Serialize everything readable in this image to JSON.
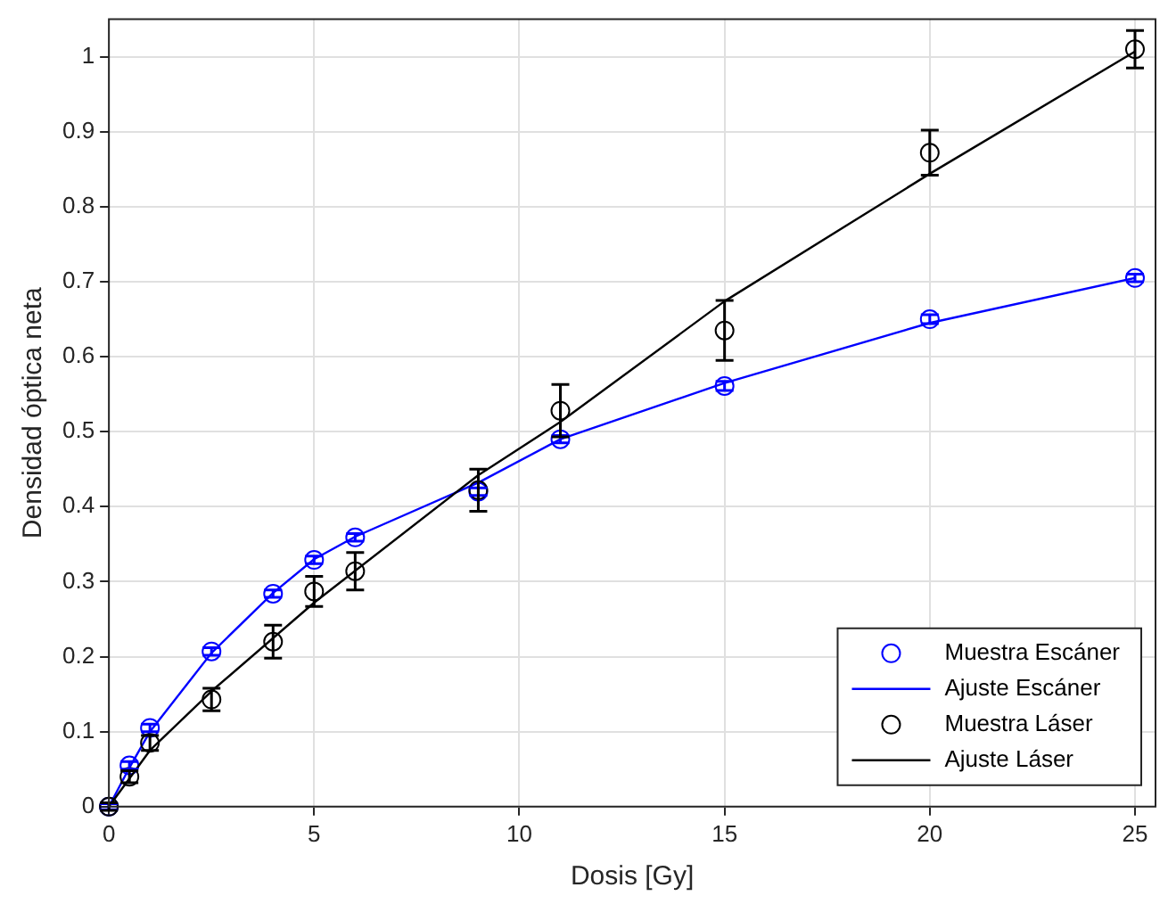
{
  "chart_data": {
    "type": "scatter",
    "xlabel": "Dosis [Gy]",
    "ylabel": "Densidad óptica neta",
    "xlim": [
      0,
      25.5
    ],
    "xticks": [
      0,
      5,
      10,
      15,
      20,
      25
    ],
    "ylim": [
      0,
      1.05
    ],
    "yticks": [
      0,
      0.1,
      0.2,
      0.3,
      0.4,
      0.5,
      0.6,
      0.7,
      0.8,
      0.9,
      1
    ],
    "grid": true,
    "legend": "bottom right",
    "marker": "circle",
    "series": [
      {
        "name": "Muestra Escáner",
        "type": "scatter",
        "color": "#0000ff",
        "x": [
          0,
          0.5,
          1,
          2.5,
          4,
          5,
          6,
          9,
          11,
          15,
          20,
          25
        ],
        "values": [
          0,
          0.055,
          0.105,
          0.207,
          0.284,
          0.329,
          0.359,
          0.42,
          0.49,
          0.561,
          0.65,
          0.705
        ],
        "errors": [
          0.004,
          0.005,
          0.005,
          0.005,
          0.005,
          0.005,
          0.005,
          0.005,
          0.005,
          0.006,
          0.006,
          0.005
        ]
      },
      {
        "name": "Ajuste Escáner",
        "type": "line",
        "marker": "none",
        "color": "#0000ff",
        "x": [
          0,
          0.5,
          1,
          2.5,
          4,
          5,
          6,
          9,
          11,
          15,
          20,
          25
        ],
        "values": [
          0,
          0.052,
          0.1,
          0.205,
          0.285,
          0.33,
          0.36,
          0.432,
          0.49,
          0.565,
          0.645,
          0.705
        ]
      },
      {
        "name": "Muestra Láser",
        "type": "scatter",
        "color": "#000000",
        "x": [
          0,
          0.5,
          1,
          2.5,
          4,
          5,
          6,
          9,
          11,
          15,
          20,
          25
        ],
        "values": [
          0,
          0.04,
          0.085,
          0.143,
          0.22,
          0.287,
          0.314,
          0.422,
          0.528,
          0.635,
          0.872,
          1.01
        ],
        "errors": [
          0.005,
          0.008,
          0.01,
          0.015,
          0.022,
          0.02,
          0.025,
          0.028,
          0.035,
          0.04,
          0.03,
          0.025
        ]
      },
      {
        "name": "Ajuste Láser",
        "type": "line",
        "marker": "none",
        "color": "#000000",
        "x": [
          0,
          1,
          2.5,
          5,
          9,
          11,
          15,
          20,
          25
        ],
        "values": [
          0,
          0.075,
          0.154,
          0.272,
          0.442,
          0.513,
          0.674,
          0.844,
          1.007
        ]
      }
    ]
  }
}
